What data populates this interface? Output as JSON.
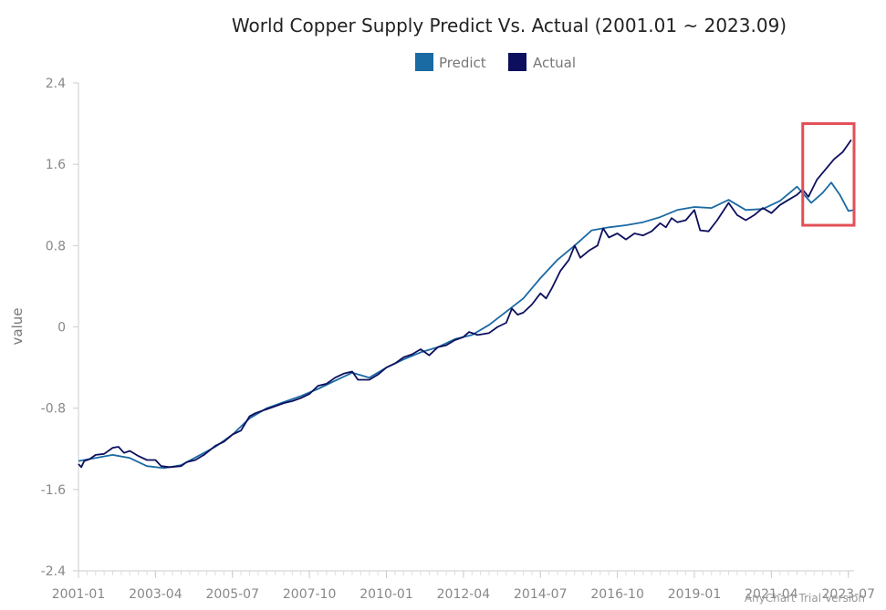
{
  "colors": {
    "predict": "#1a6aa3",
    "actual": "#0d0f5e",
    "highlight": "#e34f57",
    "axis": "#cccccc"
  },
  "watermark": "AnyChart Trial Version",
  "chart_data": {
    "type": "line",
    "title": "World Copper Supply Predict Vs. Actual (2001.01 ~ 2023.09)",
    "ylabel": "value",
    "xlabel": "",
    "ylim": [
      -2.4,
      2.4
    ],
    "yticks": [
      "2.4",
      "1.6",
      "0.8",
      "0",
      "-0.8",
      "-1.6",
      "-2.4"
    ],
    "ytick_values": [
      2.4,
      1.6,
      0.8,
      0,
      -0.8,
      -1.6,
      -2.4
    ],
    "xticks": [
      "2001-01",
      "2003-04",
      "2005-07",
      "2007-10",
      "2010-01",
      "2012-04",
      "2014-07",
      "2016-10",
      "2019-01",
      "2021-04",
      "2023-07"
    ],
    "xrange": [
      "2001-01",
      "2023-09"
    ],
    "legend": {
      "position": "top-center",
      "entries": [
        "Predict",
        "Actual"
      ]
    },
    "highlight_range": {
      "x": [
        "2022-03",
        "2023-09"
      ],
      "y": [
        1.0,
        2.0
      ]
    },
    "series": [
      {
        "name": "Predict",
        "points": [
          [
            "2001-01",
            -1.32
          ],
          [
            "2001-07",
            -1.29
          ],
          [
            "2002-01",
            -1.26
          ],
          [
            "2002-07",
            -1.29
          ],
          [
            "2003-01",
            -1.37
          ],
          [
            "2003-07",
            -1.39
          ],
          [
            "2004-01",
            -1.36
          ],
          [
            "2004-07",
            -1.27
          ],
          [
            "2005-01",
            -1.18
          ],
          [
            "2005-07",
            -1.06
          ],
          [
            "2006-01",
            -0.9
          ],
          [
            "2006-07",
            -0.8
          ],
          [
            "2007-01",
            -0.74
          ],
          [
            "2007-07",
            -0.68
          ],
          [
            "2008-01",
            -0.61
          ],
          [
            "2008-07",
            -0.53
          ],
          [
            "2009-01",
            -0.45
          ],
          [
            "2009-07",
            -0.5
          ],
          [
            "2010-01",
            -0.4
          ],
          [
            "2010-07",
            -0.32
          ],
          [
            "2011-01",
            -0.25
          ],
          [
            "2011-07",
            -0.2
          ],
          [
            "2012-01",
            -0.12
          ],
          [
            "2012-07",
            -0.08
          ],
          [
            "2013-01",
            0.02
          ],
          [
            "2013-07",
            0.15
          ],
          [
            "2014-01",
            0.28
          ],
          [
            "2014-07",
            0.48
          ],
          [
            "2015-01",
            0.66
          ],
          [
            "2015-07",
            0.8
          ],
          [
            "2016-01",
            0.95
          ],
          [
            "2016-07",
            0.98
          ],
          [
            "2017-01",
            1.0
          ],
          [
            "2017-07",
            1.03
          ],
          [
            "2018-01",
            1.08
          ],
          [
            "2018-07",
            1.15
          ],
          [
            "2019-01",
            1.18
          ],
          [
            "2019-07",
            1.17
          ],
          [
            "2020-01",
            1.25
          ],
          [
            "2020-07",
            1.15
          ],
          [
            "2021-01",
            1.16
          ],
          [
            "2021-07",
            1.24
          ],
          [
            "2022-01",
            1.38
          ],
          [
            "2022-06",
            1.22
          ],
          [
            "2022-10",
            1.32
          ],
          [
            "2023-01",
            1.42
          ],
          [
            "2023-04",
            1.3
          ],
          [
            "2023-07",
            1.14
          ],
          [
            "2023-09",
            1.15
          ]
        ]
      },
      {
        "name": "Actual",
        "points": [
          [
            "2001-01",
            -1.35
          ],
          [
            "2001-02",
            -1.38
          ],
          [
            "2001-03",
            -1.32
          ],
          [
            "2001-05",
            -1.3
          ],
          [
            "2001-07",
            -1.26
          ],
          [
            "2001-10",
            -1.25
          ],
          [
            "2002-01",
            -1.19
          ],
          [
            "2002-03",
            -1.18
          ],
          [
            "2002-05",
            -1.24
          ],
          [
            "2002-07",
            -1.22
          ],
          [
            "2002-10",
            -1.27
          ],
          [
            "2003-01",
            -1.31
          ],
          [
            "2003-04",
            -1.31
          ],
          [
            "2003-06",
            -1.37
          ],
          [
            "2003-09",
            -1.38
          ],
          [
            "2004-01",
            -1.37
          ],
          [
            "2004-03",
            -1.33
          ],
          [
            "2004-06",
            -1.31
          ],
          [
            "2004-09",
            -1.26
          ],
          [
            "2005-01",
            -1.17
          ],
          [
            "2005-04",
            -1.13
          ],
          [
            "2005-07",
            -1.06
          ],
          [
            "2005-10",
            -1.02
          ],
          [
            "2006-01",
            -0.88
          ],
          [
            "2006-03",
            -0.85
          ],
          [
            "2006-06",
            -0.82
          ],
          [
            "2006-09",
            -0.79
          ],
          [
            "2007-01",
            -0.75
          ],
          [
            "2007-04",
            -0.73
          ],
          [
            "2007-07",
            -0.7
          ],
          [
            "2007-10",
            -0.66
          ],
          [
            "2008-01",
            -0.58
          ],
          [
            "2008-04",
            -0.56
          ],
          [
            "2008-07",
            -0.5
          ],
          [
            "2008-10",
            -0.46
          ],
          [
            "2009-01",
            -0.44
          ],
          [
            "2009-03",
            -0.52
          ],
          [
            "2009-07",
            -0.52
          ],
          [
            "2009-10",
            -0.47
          ],
          [
            "2010-01",
            -0.4
          ],
          [
            "2010-04",
            -0.36
          ],
          [
            "2010-07",
            -0.3
          ],
          [
            "2010-10",
            -0.27
          ],
          [
            "2011-01",
            -0.22
          ],
          [
            "2011-04",
            -0.28
          ],
          [
            "2011-07",
            -0.2
          ],
          [
            "2011-10",
            -0.18
          ],
          [
            "2012-01",
            -0.13
          ],
          [
            "2012-04",
            -0.1
          ],
          [
            "2012-06",
            -0.05
          ],
          [
            "2012-09",
            -0.08
          ],
          [
            "2013-01",
            -0.06
          ],
          [
            "2013-04",
            0.0
          ],
          [
            "2013-07",
            0.04
          ],
          [
            "2013-09",
            0.18
          ],
          [
            "2013-11",
            0.12
          ],
          [
            "2014-01",
            0.14
          ],
          [
            "2014-04",
            0.22
          ],
          [
            "2014-07",
            0.33
          ],
          [
            "2014-09",
            0.28
          ],
          [
            "2014-11",
            0.38
          ],
          [
            "2015-02",
            0.55
          ],
          [
            "2015-05",
            0.66
          ],
          [
            "2015-07",
            0.8
          ],
          [
            "2015-09",
            0.68
          ],
          [
            "2015-12",
            0.75
          ],
          [
            "2016-03",
            0.8
          ],
          [
            "2016-05",
            0.97
          ],
          [
            "2016-07",
            0.88
          ],
          [
            "2016-10",
            0.92
          ],
          [
            "2017-01",
            0.86
          ],
          [
            "2017-04",
            0.92
          ],
          [
            "2017-07",
            0.9
          ],
          [
            "2017-10",
            0.94
          ],
          [
            "2018-01",
            1.02
          ],
          [
            "2018-03",
            0.98
          ],
          [
            "2018-05",
            1.07
          ],
          [
            "2018-07",
            1.03
          ],
          [
            "2018-10",
            1.05
          ],
          [
            "2019-01",
            1.15
          ],
          [
            "2019-03",
            0.95
          ],
          [
            "2019-06",
            0.94
          ],
          [
            "2019-09",
            1.05
          ],
          [
            "2020-01",
            1.22
          ],
          [
            "2020-04",
            1.1
          ],
          [
            "2020-07",
            1.05
          ],
          [
            "2020-10",
            1.1
          ],
          [
            "2021-01",
            1.17
          ],
          [
            "2021-04",
            1.12
          ],
          [
            "2021-07",
            1.2
          ],
          [
            "2021-10",
            1.25
          ],
          [
            "2022-01",
            1.3
          ],
          [
            "2022-03",
            1.35
          ],
          [
            "2022-05",
            1.28
          ],
          [
            "2022-08",
            1.45
          ],
          [
            "2022-11",
            1.55
          ],
          [
            "2023-02",
            1.65
          ],
          [
            "2023-05",
            1.72
          ],
          [
            "2023-07",
            1.8
          ],
          [
            "2023-08",
            1.84
          ]
        ]
      }
    ]
  }
}
